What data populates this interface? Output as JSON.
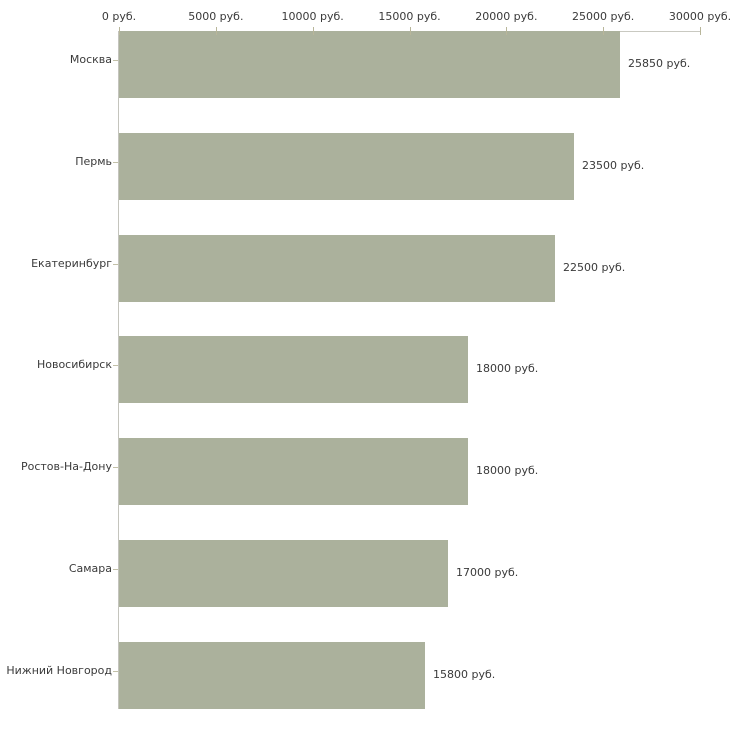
{
  "chart_data": {
    "type": "bar",
    "orientation": "horizontal",
    "title": "",
    "xlabel": "",
    "ylabel": "",
    "grid": false,
    "legend": false,
    "categories": [
      "Москва",
      "Пермь",
      "Екатеринбург",
      "Новосибирск",
      "Ростов-На-Дону",
      "Самара",
      "Нижний Новгород"
    ],
    "values": [
      25850,
      23500,
      22500,
      18000,
      18000,
      17000,
      15800
    ],
    "value_labels": [
      "25850 руб.",
      "23500 руб.",
      "22500 руб.",
      "18000 руб.",
      "18000 руб.",
      "17000 руб.",
      "15800 руб."
    ],
    "x_axis": {
      "position": "top",
      "min": 0,
      "max": 30000,
      "ticks": [
        0,
        5000,
        10000,
        15000,
        20000,
        25000,
        30000
      ],
      "tick_labels": [
        "0 руб.",
        "5000 руб.",
        "10000 руб.",
        "15000 руб.",
        "20000 руб.",
        "25000 руб.",
        "30000 руб."
      ]
    },
    "colors": {
      "bar": "#abb19c",
      "axis_line": "#c9c9c1",
      "tick_mark": "#b8b69a",
      "text": "#3a3a3a",
      "background": "#ffffff"
    }
  }
}
